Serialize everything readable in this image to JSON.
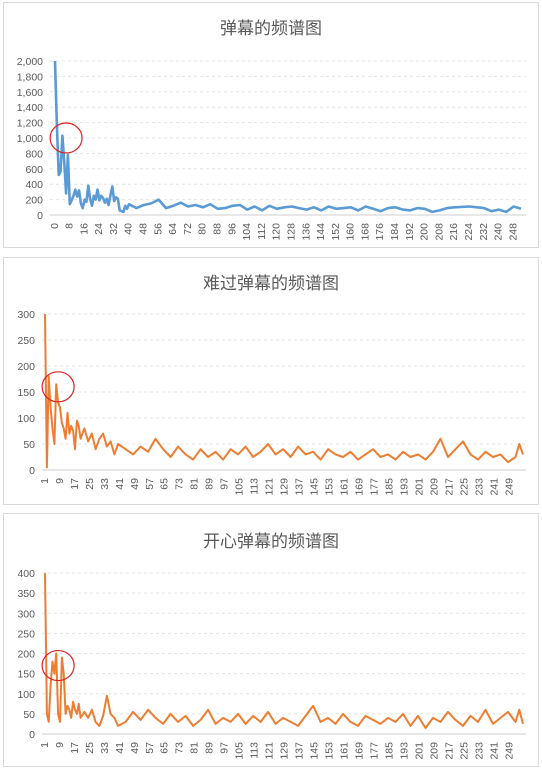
{
  "chart_data": [
    {
      "type": "line",
      "title": "弹幕的频谱图",
      "color": "#5b9bd5",
      "ylim": [
        0,
        2000
      ],
      "yticks": [
        0,
        200,
        400,
        600,
        800,
        1000,
        1200,
        1400,
        1600,
        1800,
        2000
      ],
      "ytick_labels": [
        "0",
        "200",
        "400",
        "600",
        "800",
        "1,000",
        "1,200",
        "1,400",
        "1,600",
        "1,800",
        "2,000"
      ],
      "xlim": [
        0,
        252
      ],
      "xticks": [
        0,
        8,
        16,
        24,
        32,
        40,
        48,
        56,
        64,
        72,
        80,
        88,
        96,
        104,
        112,
        120,
        128,
        136,
        144,
        152,
        160,
        168,
        176,
        184,
        192,
        200,
        208,
        216,
        224,
        232,
        240,
        248
      ],
      "grid": true,
      "legend": "none",
      "marker": {
        "type": "circle",
        "color": "#e02020",
        "x": 6,
        "y": 1000
      },
      "series": [
        {
          "x": [
            0,
            1,
            2,
            3,
            4,
            5,
            6,
            7,
            8,
            9,
            10,
            11,
            12,
            13,
            14,
            15,
            16,
            17,
            18,
            19,
            20,
            21,
            22,
            23,
            24,
            25,
            26,
            27,
            28,
            29,
            30,
            31,
            32,
            33,
            34,
            35,
            36,
            37,
            38,
            39,
            40,
            44,
            48,
            52,
            56,
            60,
            64,
            68,
            72,
            76,
            80,
            84,
            88,
            92,
            96,
            100,
            104,
            108,
            112,
            116,
            120,
            124,
            128,
            132,
            136,
            140,
            144,
            148,
            152,
            156,
            160,
            164,
            168,
            172,
            176,
            180,
            184,
            188,
            192,
            196,
            200,
            204,
            208,
            212,
            216,
            224,
            232,
            236,
            240,
            244,
            248,
            252
          ],
          "y": [
            2000,
            1200,
            520,
            560,
            1030,
            700,
            280,
            780,
            140,
            190,
            250,
            330,
            240,
            320,
            150,
            90,
            200,
            170,
            380,
            210,
            120,
            250,
            200,
            330,
            190,
            250,
            220,
            160,
            210,
            130,
            260,
            370,
            180,
            230,
            210,
            60,
            50,
            40,
            120,
            80,
            140,
            90,
            130,
            150,
            200,
            90,
            120,
            160,
            110,
            130,
            100,
            140,
            80,
            90,
            120,
            130,
            70,
            110,
            60,
            120,
            80,
            100,
            110,
            90,
            70,
            100,
            60,
            110,
            80,
            90,
            100,
            60,
            110,
            80,
            50,
            90,
            100,
            70,
            60,
            90,
            80,
            40,
            60,
            90,
            100,
            110,
            90,
            50,
            70,
            40,
            110,
            80
          ]
        }
      ]
    },
    {
      "type": "line",
      "title": "难过弹幕的频谱图",
      "color": "#ed7d31",
      "ylim": [
        0,
        300
      ],
      "yticks": [
        0,
        50,
        100,
        150,
        200,
        250,
        300
      ],
      "ytick_labels": [
        "0",
        "50",
        "100",
        "150",
        "200",
        "250",
        "300"
      ],
      "xlim": [
        1,
        256
      ],
      "xticks": [
        1,
        9,
        17,
        25,
        33,
        41,
        49,
        57,
        65,
        73,
        81,
        89,
        97,
        105,
        113,
        121,
        129,
        137,
        145,
        153,
        161,
        169,
        177,
        185,
        193,
        201,
        209,
        217,
        225,
        233,
        241,
        249
      ],
      "grid": true,
      "legend": "none",
      "marker": {
        "type": "circle",
        "color": "#e02020",
        "x": 8,
        "y": 160
      },
      "series": [
        {
          "x": [
            1,
            2,
            3,
            4,
            5,
            6,
            7,
            8,
            9,
            10,
            11,
            12,
            13,
            14,
            15,
            16,
            17,
            18,
            19,
            20,
            22,
            24,
            26,
            28,
            30,
            32,
            34,
            36,
            38,
            40,
            44,
            48,
            52,
            56,
            60,
            64,
            68,
            72,
            76,
            80,
            84,
            88,
            92,
            96,
            100,
            104,
            108,
            112,
            116,
            120,
            124,
            128,
            132,
            136,
            140,
            144,
            148,
            152,
            156,
            160,
            164,
            168,
            172,
            176,
            180,
            184,
            188,
            192,
            196,
            200,
            204,
            208,
            212,
            216,
            220,
            224,
            228,
            232,
            236,
            240,
            244,
            248,
            252,
            254,
            256
          ],
          "y": [
            300,
            5,
            180,
            120,
            80,
            50,
            165,
            130,
            120,
            90,
            80,
            60,
            110,
            70,
            85,
            75,
            40,
            95,
            85,
            60,
            80,
            55,
            70,
            40,
            60,
            70,
            45,
            55,
            30,
            50,
            40,
            30,
            45,
            35,
            60,
            40,
            25,
            45,
            30,
            20,
            40,
            25,
            35,
            20,
            40,
            30,
            45,
            25,
            35,
            50,
            30,
            40,
            25,
            45,
            30,
            35,
            20,
            40,
            30,
            25,
            35,
            20,
            30,
            40,
            25,
            30,
            20,
            35,
            25,
            30,
            20,
            35,
            60,
            25,
            40,
            55,
            30,
            20,
            35,
            25,
            30,
            15,
            25,
            50,
            30
          ]
        }
      ]
    },
    {
      "type": "line",
      "title": "开心弹幕的频谱图",
      "color": "#ed7d31",
      "ylim": [
        0,
        400
      ],
      "yticks": [
        0,
        50,
        100,
        150,
        200,
        250,
        300,
        350,
        400
      ],
      "ytick_labels": [
        "0",
        "50",
        "100",
        "150",
        "200",
        "250",
        "300",
        "350",
        "400"
      ],
      "xlim": [
        1,
        256
      ],
      "xticks": [
        1,
        9,
        17,
        25,
        33,
        41,
        49,
        57,
        65,
        73,
        81,
        89,
        97,
        105,
        113,
        121,
        129,
        137,
        145,
        153,
        161,
        169,
        177,
        185,
        193,
        201,
        209,
        217,
        225,
        233,
        241,
        249
      ],
      "grid": true,
      "legend": "none",
      "marker": {
        "type": "circle",
        "color": "#e02020",
        "x": 8,
        "y": 170
      },
      "series": [
        {
          "x": [
            1,
            2,
            3,
            4,
            5,
            6,
            7,
            8,
            9,
            10,
            11,
            12,
            13,
            14,
            15,
            16,
            17,
            18,
            19,
            20,
            22,
            24,
            26,
            28,
            30,
            32,
            34,
            36,
            38,
            40,
            44,
            48,
            52,
            56,
            60,
            64,
            68,
            72,
            76,
            80,
            84,
            88,
            92,
            96,
            100,
            104,
            108,
            112,
            116,
            120,
            124,
            128,
            132,
            136,
            140,
            144,
            148,
            152,
            156,
            160,
            164,
            168,
            172,
            176,
            180,
            184,
            188,
            192,
            196,
            200,
            204,
            208,
            212,
            216,
            220,
            224,
            228,
            232,
            236,
            240,
            244,
            248,
            252,
            254,
            256
          ],
          "y": [
            400,
            50,
            30,
            120,
            180,
            150,
            200,
            50,
            30,
            190,
            150,
            50,
            70,
            60,
            40,
            80,
            60,
            50,
            75,
            40,
            55,
            40,
            60,
            30,
            20,
            45,
            95,
            50,
            40,
            20,
            30,
            55,
            35,
            60,
            40,
            25,
            50,
            30,
            45,
            20,
            35,
            60,
            25,
            40,
            30,
            50,
            25,
            45,
            30,
            55,
            25,
            40,
            30,
            20,
            45,
            70,
            30,
            40,
            25,
            50,
            30,
            20,
            45,
            35,
            25,
            40,
            30,
            50,
            20,
            45,
            15,
            40,
            30,
            55,
            35,
            20,
            45,
            30,
            60,
            25,
            40,
            55,
            30,
            60,
            25
          ]
        }
      ]
    }
  ]
}
